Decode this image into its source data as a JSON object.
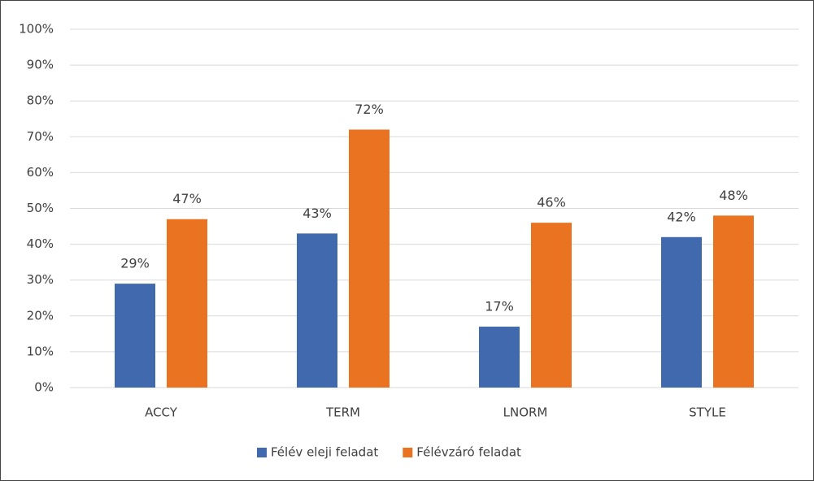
{
  "chart_data": {
    "type": "bar",
    "categories": [
      "ACCY",
      "TERM",
      "LNORM",
      "STYLE"
    ],
    "series": [
      {
        "name": "Félév eleji feladat",
        "color": "#4169ad",
        "values": [
          29,
          43,
          17,
          42
        ],
        "value_labels": [
          "29%",
          "43%",
          "17%",
          "42%"
        ]
      },
      {
        "name": "Félévzáró feladat",
        "color": "#e97321",
        "values": [
          47,
          72,
          46,
          48
        ],
        "value_labels": [
          "47%",
          "72%",
          "46%",
          "48%"
        ]
      }
    ],
    "ylim": [
      0,
      100
    ],
    "yticks": [
      {
        "value": 0,
        "label": "0%"
      },
      {
        "value": 10,
        "label": "10%"
      },
      {
        "value": 20,
        "label": "20%"
      },
      {
        "value": 30,
        "label": "30%"
      },
      {
        "value": 40,
        "label": "40%"
      },
      {
        "value": 50,
        "label": "50%"
      },
      {
        "value": 60,
        "label": "60%"
      },
      {
        "value": 70,
        "label": "70%"
      },
      {
        "value": 80,
        "label": "80%"
      },
      {
        "value": 90,
        "label": "90%"
      },
      {
        "value": 100,
        "label": "100%"
      }
    ],
    "grid": true,
    "legend": "bottom"
  }
}
